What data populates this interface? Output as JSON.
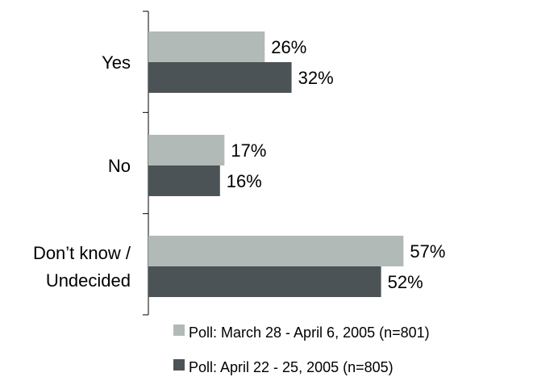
{
  "chart_data": {
    "type": "bar",
    "orientation": "horizontal",
    "categories": [
      [
        "Yes"
      ],
      [
        "No"
      ],
      [
        "Don’t know /",
        "Undecided"
      ]
    ],
    "series": [
      {
        "name": "Poll: March 28 - April 6, 2005 (n=801)",
        "values": [
          26,
          17,
          57
        ],
        "labels": [
          "26%",
          "17%",
          "57%"
        ],
        "color": "#b2bab7"
      },
      {
        "name": "Poll: April 22 - 25, 2005 (n=805)",
        "values": [
          32,
          16,
          52
        ],
        "labels": [
          "32%",
          "16%",
          "52%"
        ],
        "color": "#4b5356"
      }
    ],
    "xlim": [
      0,
      100
    ],
    "grid": false,
    "legend_position": "bottom"
  }
}
